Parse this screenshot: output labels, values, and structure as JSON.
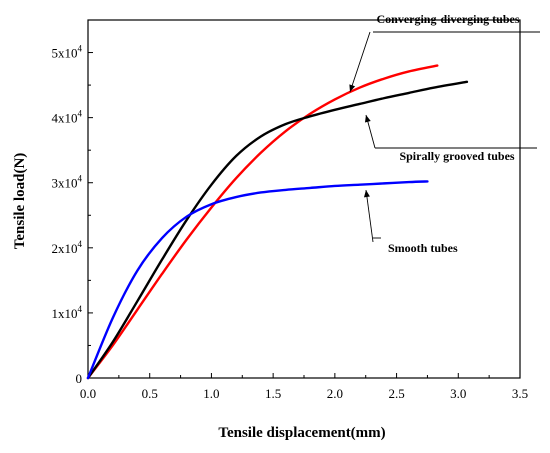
{
  "chart_data": {
    "type": "line",
    "xlabel": "Tensile displacement(mm)",
    "ylabel": "Tensile load(N)",
    "xlim": [
      0,
      3.5
    ],
    "ylim": [
      0,
      55000
    ],
    "x_ticks": [
      {
        "value": 0,
        "label": "0.0"
      },
      {
        "value": 0.5,
        "label": "0.5"
      },
      {
        "value": 1.0,
        "label": "1.0"
      },
      {
        "value": 1.5,
        "label": "1.5"
      },
      {
        "value": 2.0,
        "label": "2.0"
      },
      {
        "value": 2.5,
        "label": "2.5"
      },
      {
        "value": 3.0,
        "label": "3.0"
      },
      {
        "value": 3.5,
        "label": "3.5"
      }
    ],
    "y_ticks": [
      {
        "value": 0,
        "base": "0",
        "exp": ""
      },
      {
        "value": 10000,
        "base": "1x10",
        "exp": "4"
      },
      {
        "value": 20000,
        "base": "2x10",
        "exp": "4"
      },
      {
        "value": 30000,
        "base": "3x10",
        "exp": "4"
      },
      {
        "value": 40000,
        "base": "4x10",
        "exp": "4"
      },
      {
        "value": 50000,
        "base": "5x10",
        "exp": "4"
      }
    ],
    "grid": false,
    "series": [
      {
        "name": "Converging-diverging tubes",
        "color": "#ff0000",
        "x": [
          0,
          0.2,
          0.4,
          0.6,
          0.8,
          1.0,
          1.2,
          1.4,
          1.6,
          1.8,
          2.0,
          2.2,
          2.4,
          2.6,
          2.83
        ],
        "y": [
          0,
          5000,
          10500,
          16000,
          21300,
          26200,
          30700,
          34600,
          37900,
          40600,
          42800,
          44600,
          46000,
          47100,
          48000
        ]
      },
      {
        "name": "Spirally grooved tubes",
        "color": "#000000",
        "x": [
          0,
          0.2,
          0.4,
          0.6,
          0.8,
          1.0,
          1.2,
          1.4,
          1.6,
          1.8,
          2.0,
          2.2,
          2.4,
          2.6,
          2.8,
          3.07
        ],
        "y": [
          0,
          5500,
          11800,
          18200,
          24300,
          29700,
          34100,
          37100,
          39000,
          40200,
          41200,
          42100,
          43000,
          43800,
          44600,
          45500
        ]
      },
      {
        "name": "Smooth tubes",
        "color": "#0000ff",
        "x": [
          0,
          0.2,
          0.4,
          0.6,
          0.8,
          1.0,
          1.2,
          1.4,
          1.6,
          1.8,
          2.0,
          2.2,
          2.4,
          2.6,
          2.75
        ],
        "y": [
          0,
          9200,
          16500,
          21500,
          24800,
          26700,
          27800,
          28500,
          28900,
          29200,
          29500,
          29700,
          29900,
          30100,
          30200
        ]
      }
    ],
    "annotations": [
      {
        "series": "Converging-diverging tubes",
        "text": "Converging-diverging tubes",
        "point": [
          2.13,
          43500
        ]
      },
      {
        "series": "Spirally grooved tubes",
        "text": "Spirally grooved tubes",
        "point": [
          2.28,
          42500
        ]
      },
      {
        "series": "Smooth tubes",
        "text": "Smooth tubes",
        "point": [
          2.32,
          29800
        ]
      }
    ]
  }
}
